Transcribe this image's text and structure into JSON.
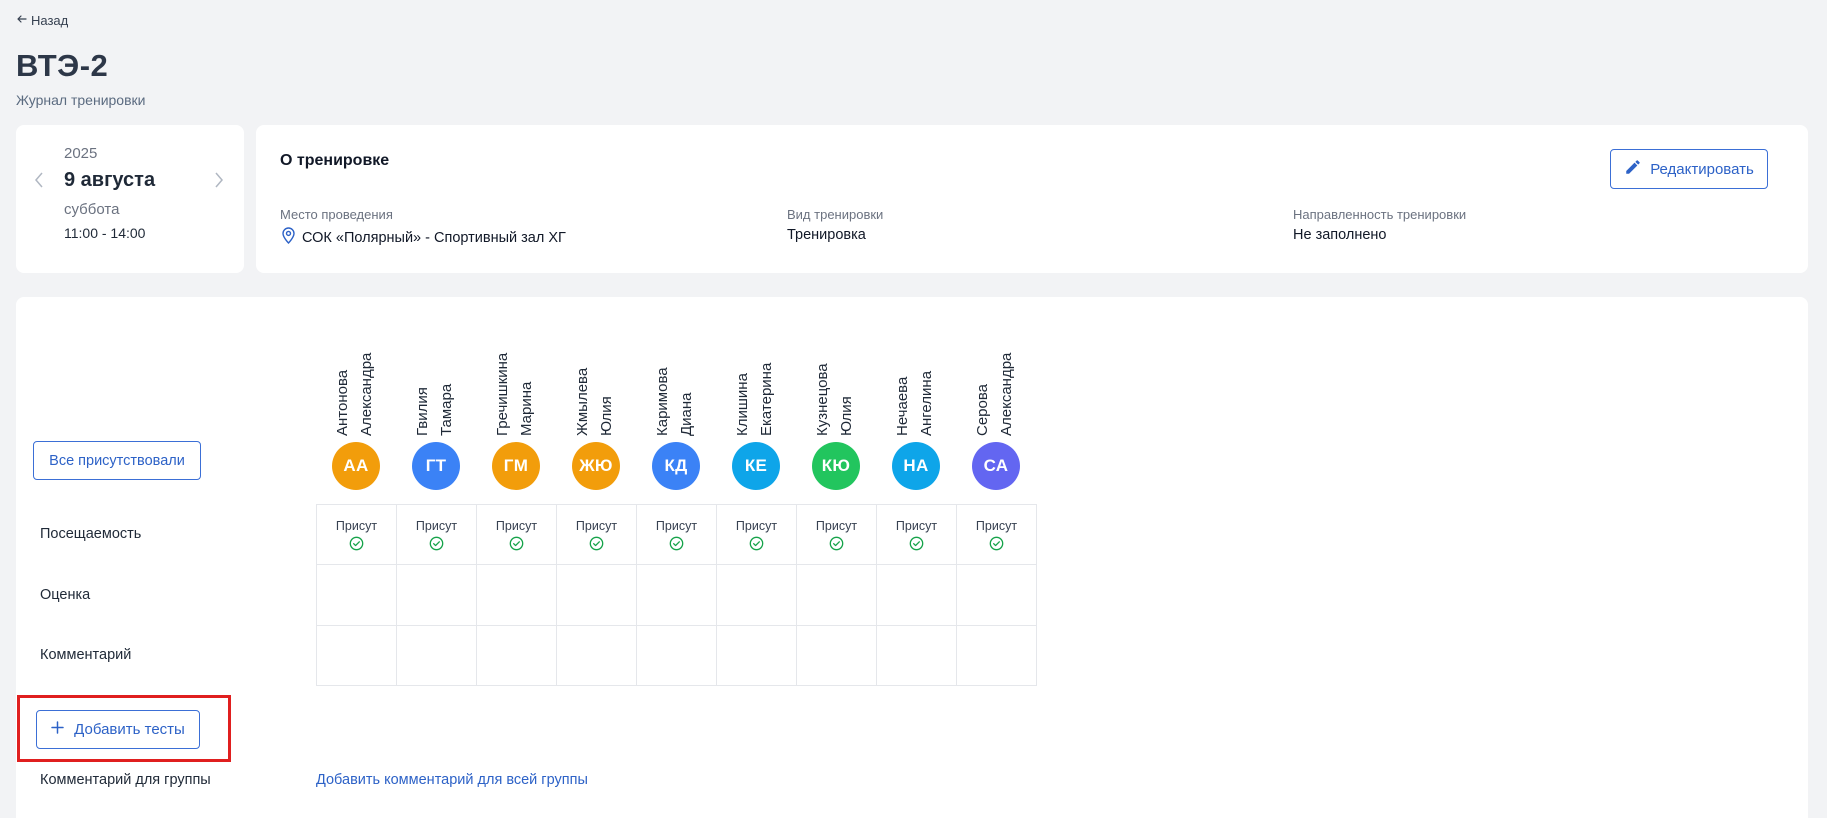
{
  "header": {
    "back_label": "Назад",
    "title": "ВТЭ-2",
    "subtitle": "Журнал тренировки"
  },
  "date_card": {
    "year": "2025",
    "date": "9 августа",
    "weekday": "суббота",
    "time": "11:00 - 14:00"
  },
  "info": {
    "title": "О тренировке",
    "edit_label": "Редактировать",
    "fields": [
      {
        "label": "Место проведения",
        "value": "СОК «Полярный» - Спортивный зал ХГ",
        "icon": "location-pin-icon"
      },
      {
        "label": "Вид тренировки",
        "value": "Тренировка"
      },
      {
        "label": "Направленность тренировки",
        "value": "Не заполнено"
      }
    ]
  },
  "journal": {
    "all_present_label": "Все присутствовали",
    "rows": {
      "attendance": "Посещаемость",
      "grade": "Оценка",
      "comment": "Комментарий"
    },
    "attendance_status": "Присут",
    "add_tests_label": "Добавить тесты",
    "group_comment_label": "Комментарий для группы",
    "group_comment_link": "Добавить комментарий для всей группы",
    "athletes": [
      {
        "last": "Антонова",
        "first": "Александра",
        "initials": "АА",
        "color": "#f29d0b",
        "present": true
      },
      {
        "last": "Гвилия",
        "first": "Тамара",
        "initials": "ГТ",
        "color": "#3b82f6",
        "present": true
      },
      {
        "last": "Гречишкина",
        "first": "Марина",
        "initials": "ГМ",
        "color": "#f29d0b",
        "present": true
      },
      {
        "last": "Жмылева",
        "first": "Юлия",
        "initials": "ЖЮ",
        "color": "#f29d0b",
        "present": true
      },
      {
        "last": "Каримова",
        "first": "Диана",
        "initials": "КД",
        "color": "#3b82f6",
        "present": true
      },
      {
        "last": "Клишина",
        "first": "Екатерина",
        "initials": "КЕ",
        "color": "#0ea5e9",
        "present": true
      },
      {
        "last": "Кузнецова",
        "first": "Юлия",
        "initials": "КЮ",
        "color": "#22c55e",
        "present": true
      },
      {
        "last": "Нечаева",
        "first": "Ангелина",
        "initials": "НА",
        "color": "#0ea5e9",
        "present": true
      },
      {
        "last": "Серова",
        "first": "Александра",
        "initials": "СА",
        "color": "#6366f1",
        "present": true
      }
    ]
  }
}
